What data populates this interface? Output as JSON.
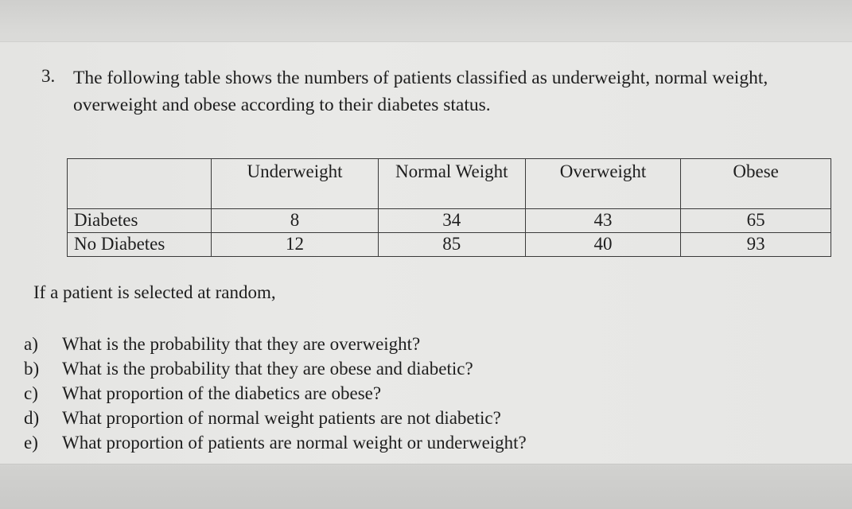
{
  "question": {
    "number": "3.",
    "text": "The following table shows the numbers of patients classified as underweight, normal weight, overweight and obese according to their diabetes status."
  },
  "table": {
    "headers": [
      "",
      "Underweight",
      "Normal Weight",
      "Overweight",
      "Obese"
    ],
    "rows": [
      {
        "label": "Diabetes",
        "values": [
          "8",
          "34",
          "43",
          "65"
        ]
      },
      {
        "label": "No Diabetes",
        "values": [
          "12",
          "85",
          "40",
          "93"
        ]
      }
    ]
  },
  "intro": "If a patient is selected at random,",
  "subquestions": [
    {
      "letter": "a)",
      "text": "What is the probability that they are overweight?"
    },
    {
      "letter": "b)",
      "text": "What is the probability that they are obese and diabetic?"
    },
    {
      "letter": "c)",
      "text": "What proportion of the diabetics are obese?"
    },
    {
      "letter": "d)",
      "text": "What proportion of normal weight patients are not diabetic?"
    },
    {
      "letter": "e)",
      "text": "What proportion of patients are normal weight or underweight?"
    }
  ]
}
